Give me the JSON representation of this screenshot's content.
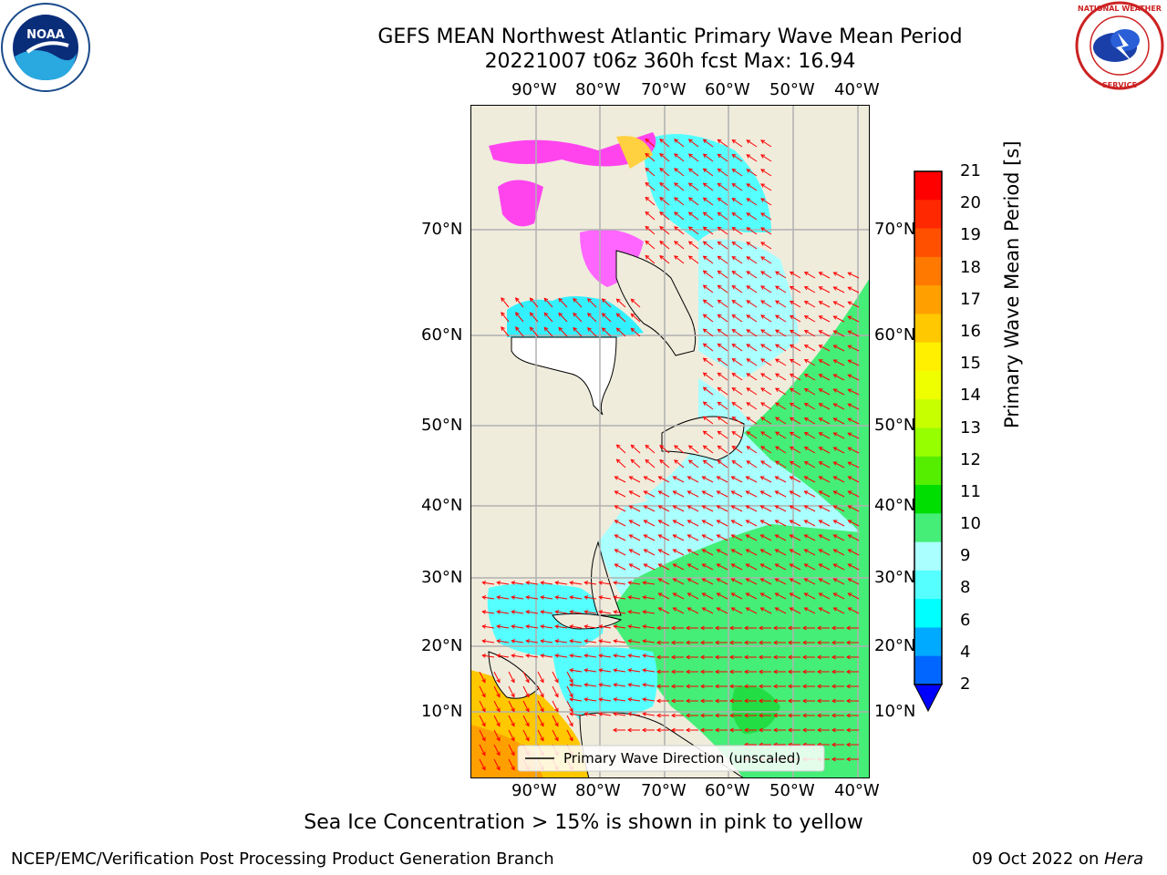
{
  "title": {
    "line1": "GEFS MEAN Northwest Atlantic Primary Wave Mean Period",
    "line2": "20221007 t06z 360h fcst   Max: 16.94"
  },
  "logos": {
    "left": "NOAA",
    "right": "NATIONAL WEATHER SERVICE"
  },
  "map": {
    "lon_labels": [
      "90°W",
      "80°W",
      "70°W",
      "60°W",
      "50°W",
      "40°W"
    ],
    "lat_labels": [
      "70°N",
      "60°N",
      "50°N",
      "40°N",
      "30°N",
      "20°N",
      "10°N"
    ],
    "legend_label": "Primary Wave Direction (unscaled)",
    "land_color": "#efecdc",
    "arrow_color": "#ff0000"
  },
  "colorbar": {
    "title": "Primary Wave Mean Period [s]",
    "ticks": [
      "21",
      "20",
      "19",
      "18",
      "17",
      "16",
      "15",
      "14",
      "13",
      "12",
      "11",
      "10",
      "9",
      "8",
      "6",
      "4",
      "2"
    ],
    "colors": [
      "#ff0000",
      "#ff2800",
      "#ff5000",
      "#ff7800",
      "#ffa000",
      "#ffc800",
      "#fff000",
      "#f0ff00",
      "#c8ff00",
      "#96ff00",
      "#55ee00",
      "#00dd00",
      "#44ee77",
      "#aaffff",
      "#55ffff",
      "#00ffff",
      "#00aaff",
      "#0066ff"
    ],
    "extend_color": "#0000ff"
  },
  "note": "Sea Ice Concentration > 15% is shown in pink to yellow",
  "footer": {
    "left": "NCEP/EMC/Verification Post Processing Product Generation Branch",
    "right_prefix": "09 Oct 2022 on ",
    "right_machine": "Hera"
  }
}
